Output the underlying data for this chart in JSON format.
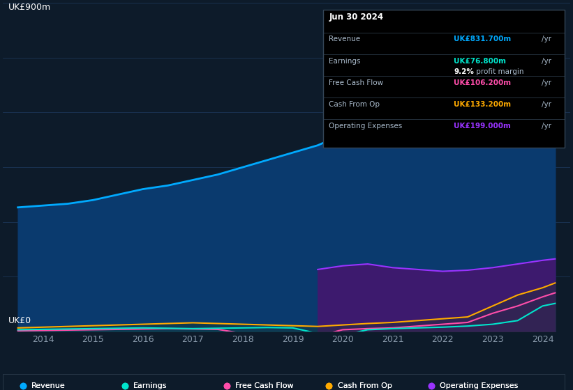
{
  "bg_color": "#0d1b2a",
  "plot_bg": "#0d1b2a",
  "grid_color": "#1e3a5f",
  "ylabel": "UK£900m",
  "y0label": "UK£0",
  "ylim": [
    0,
    900
  ],
  "years": [
    2013.5,
    2014,
    2014.5,
    2015,
    2015.5,
    2016,
    2016.5,
    2017,
    2017.5,
    2018,
    2018.5,
    2019,
    2019.5,
    2020,
    2020.5,
    2021,
    2021.5,
    2022,
    2022.5,
    2023,
    2023.5,
    2024,
    2024.25
  ],
  "revenue": [
    340,
    345,
    350,
    360,
    375,
    390,
    400,
    415,
    430,
    450,
    470,
    490,
    510,
    540,
    570,
    555,
    545,
    530,
    510,
    560,
    650,
    790,
    831
  ],
  "earnings": [
    5,
    6,
    7,
    8,
    9,
    10,
    9,
    8,
    9,
    10,
    11,
    10,
    -5,
    -10,
    5,
    8,
    10,
    12,
    15,
    20,
    30,
    70,
    77
  ],
  "free_cash_flow": [
    2,
    3,
    4,
    5,
    6,
    7,
    8,
    7,
    6,
    -5,
    -8,
    -10,
    -12,
    5,
    8,
    10,
    15,
    20,
    25,
    50,
    70,
    95,
    106
  ],
  "cash_from_op": [
    10,
    12,
    14,
    16,
    18,
    20,
    22,
    24,
    22,
    20,
    18,
    16,
    14,
    18,
    22,
    25,
    30,
    35,
    40,
    70,
    100,
    120,
    133
  ],
  "op_expenses_x": [
    2019.5,
    2020,
    2020.5,
    2021,
    2021.5,
    2022,
    2022.5,
    2023,
    2023.5,
    2024,
    2024.25
  ],
  "op_expenses": [
    170,
    180,
    185,
    175,
    170,
    165,
    168,
    175,
    185,
    195,
    199
  ],
  "revenue_color": "#00aaff",
  "revenue_fill": "#0a3a6e",
  "earnings_color": "#00e5cc",
  "free_cash_flow_color": "#ff4daa",
  "cash_from_op_color": "#ffaa00",
  "op_expenses_color": "#9933ff",
  "op_expenses_fill": "#3d1a6e",
  "xticks": [
    2014,
    2015,
    2016,
    2017,
    2018,
    2019,
    2020,
    2021,
    2022,
    2023,
    2024
  ],
  "xlabel_color": "#8899aa",
  "info_box": {
    "date": "Jun 30 2024",
    "revenue_val": "UK£831.700m",
    "revenue_color": "#00aaff",
    "earnings_val": "UK£76.800m",
    "earnings_color": "#00e5cc",
    "margin_val": "9.2%",
    "margin_text": " profit margin",
    "fcf_val": "UK£106.200m",
    "fcf_color": "#ff4daa",
    "cashop_val": "UK£133.200m",
    "cashop_color": "#ffaa00",
    "opex_val": "UK£199.000m",
    "opex_color": "#9933ff",
    "label_color": "#aabbcc",
    "bg_color": "#000000",
    "border_color": "#334455"
  },
  "legend": [
    {
      "label": "Revenue",
      "color": "#00aaff"
    },
    {
      "label": "Earnings",
      "color": "#00e5cc"
    },
    {
      "label": "Free Cash Flow",
      "color": "#ff4daa"
    },
    {
      "label": "Cash From Op",
      "color": "#ffaa00"
    },
    {
      "label": "Operating Expenses",
      "color": "#9933ff"
    }
  ]
}
